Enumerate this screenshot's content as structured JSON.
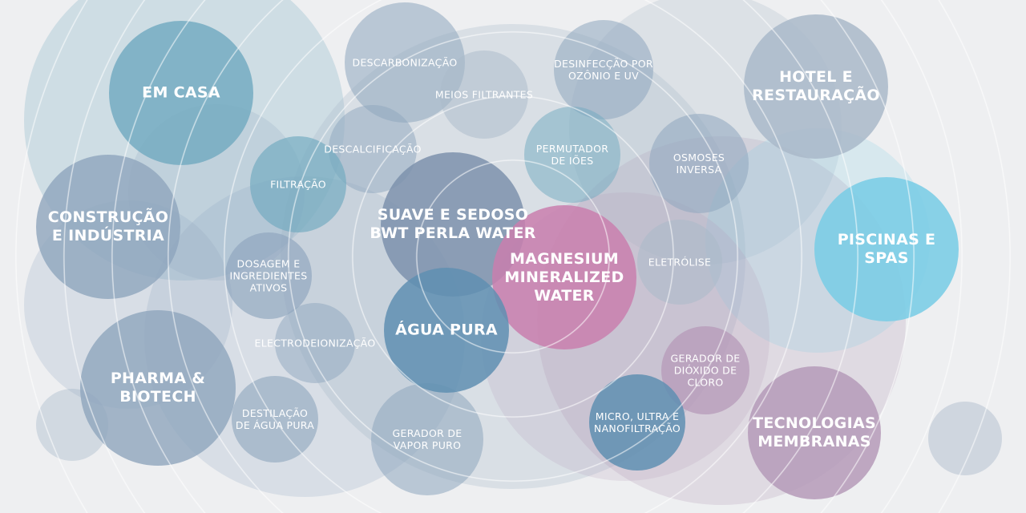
{
  "colors": {
    "background": "#eeeff1",
    "rings": "#ffffff",
    "teal": "#6fa9bf",
    "slate": "#8ea5bd",
    "grey_blue": "#a9b9c9",
    "sky": "#7ccde6",
    "magenta": "#c97fae",
    "mauve": "#b59ab8",
    "steel": "#5f8fb1"
  },
  "categories": [
    {
      "label": "EM CASA"
    },
    {
      "label": "HOTEL E\nRESTAURAÇÃO"
    },
    {
      "label": "CONSTRUÇÃO\nE INDÚSTRIA"
    },
    {
      "label": "PISCINAS E SPAS"
    },
    {
      "label": "PHARMA &\nBIOTECH"
    },
    {
      "label": "TECNOLOGIAS\nMEMBRANAS"
    }
  ],
  "technologies": [
    {
      "label": "DESCARBONIZAÇÃO"
    },
    {
      "label": "MEIOS FILTRANTES"
    },
    {
      "label": "DESINFECÇÃO POR\nOZÔNIO E UV"
    },
    {
      "label": "DESCALCIFICAÇÃO"
    },
    {
      "label": "FILTRAÇÃO"
    },
    {
      "label": "PERMUTADOR\nDE IÕES"
    },
    {
      "label": "OSMOSES\nINVERSA"
    },
    {
      "label": "ELETRÓLISE"
    },
    {
      "label": "DOSAGEM E\nINGREDIENTES\nATIVOS"
    },
    {
      "label": "ELECTRODEIONIZAÇÃO"
    },
    {
      "label": "GERADOR DE\nDIÓXIDO DE\nCLORO"
    },
    {
      "label": "DESTILAÇÃO\nDE ÁGUA PURA"
    },
    {
      "label": "GERADOR DE\nVAPOR PURO"
    },
    {
      "label": "MICRO, ULTRA E\nNANOFILTRAÇÃO"
    }
  ],
  "products": [
    {
      "label": "SUAVE E SEDOSO\nBWT PERLA WATER"
    },
    {
      "label": "MAGNESIUM\nMINERALIZED\nWATER"
    },
    {
      "label": "ÁGUA PURA"
    }
  ]
}
